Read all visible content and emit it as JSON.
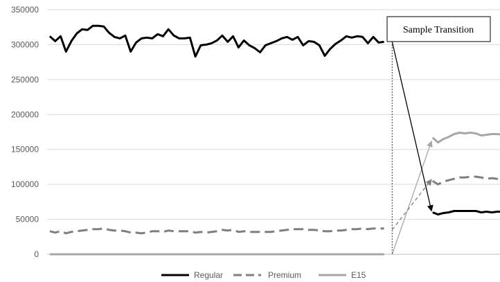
{
  "chart_data": {
    "type": "line",
    "title": "",
    "xlabel": "",
    "ylabel": "",
    "ylim": [
      0,
      350000
    ],
    "yticks": [
      0,
      50000,
      100000,
      150000,
      200000,
      250000,
      300000,
      350000
    ],
    "ytick_labels": [
      "0",
      "50000",
      "100000",
      "150000",
      "200000",
      "250000",
      "300000",
      "350000"
    ],
    "grid": "horizontal",
    "legend": "bottom",
    "n_points": 84,
    "series": [
      {
        "name": "Regular",
        "color": "#000000",
        "dash": "solid",
        "start": 1,
        "values": [
          312000,
          305000,
          312000,
          290000,
          305000,
          316000,
          322000,
          321000,
          327000,
          327000,
          326000,
          317000,
          311000,
          309000,
          313000,
          290000,
          303000,
          309000,
          310000,
          309000,
          315000,
          312000,
          322000,
          313000,
          309000,
          309000,
          310000,
          283000,
          299000,
          300000,
          302000,
          306000,
          313000,
          304000,
          312000,
          296000,
          306000,
          299000,
          295000,
          289000,
          299000,
          302000,
          305000,
          309000,
          311000,
          307000,
          311000,
          299000,
          305000,
          304000,
          299000,
          284000,
          294000,
          301000,
          306000,
          312000,
          310000,
          312000,
          311000,
          302000,
          311000,
          303000,
          304000
        ]
      },
      {
        "name": "Premium",
        "color": "#7f7f7f",
        "dash": "long-dash",
        "start": 1,
        "values": [
          33000,
          31000,
          33000,
          30000,
          32000,
          33000,
          34000,
          35000,
          36000,
          36000,
          37000,
          35000,
          34000,
          34000,
          33000,
          31000,
          31000,
          30000,
          31000,
          33000,
          33000,
          32000,
          34000,
          33000,
          33000,
          33000,
          33000,
          31000,
          32000,
          31000,
          32000,
          33000,
          35000,
          34000,
          35000,
          32000,
          33000,
          32000,
          32000,
          32000,
          32000,
          32000,
          33000,
          34000,
          35000,
          36000,
          36000,
          36000,
          35000,
          35000,
          34000,
          33000,
          33000,
          34000,
          34000,
          35000,
          36000,
          36000,
          37000,
          36000,
          37000,
          37000,
          37000
        ]
      },
      {
        "name": "E15",
        "color": "#a6a6a6",
        "dash": "solid",
        "start": 1,
        "values": [
          0,
          0,
          0,
          0,
          0,
          0,
          0,
          0,
          0,
          0,
          0,
          0,
          0,
          0,
          0,
          0,
          0,
          0,
          0,
          0,
          0,
          0,
          0,
          0,
          0,
          0,
          0,
          0,
          0,
          0,
          0,
          0,
          0,
          0,
          0,
          0,
          0,
          0,
          0,
          0,
          0,
          0,
          0,
          0,
          0,
          0,
          0,
          0,
          0,
          0,
          0,
          0,
          0,
          0,
          0,
          0,
          0,
          0,
          0,
          0,
          0,
          0,
          0
        ]
      }
    ],
    "after_transition": {
      "start": 72,
      "series": [
        {
          "name": "Regular",
          "values": [
            60000,
            57000,
            59000,
            60000,
            62000,
            62000,
            62000,
            62000,
            62000,
            60000,
            61000,
            60000,
            61000,
            61000
          ]
        },
        {
          "name": "Premium",
          "values": [
            105000,
            100000,
            104000,
            106000,
            108000,
            110000,
            110000,
            111000,
            111000,
            110000,
            108000,
            109000,
            108000,
            110000
          ]
        },
        {
          "name": "E15",
          "values": [
            167000,
            160000,
            165000,
            168000,
            172000,
            174000,
            173000,
            174000,
            173000,
            170000,
            171000,
            172000,
            172000,
            171000
          ]
        }
      ]
    },
    "annotation": {
      "text": "Sample Transition",
      "divider_x": 64,
      "arrows": [
        {
          "series": "Regular",
          "from_x": 64,
          "from_y": 304000,
          "to_x": 72,
          "to_y": 62000,
          "color": "#000000",
          "dashed": false
        },
        {
          "series": "Premium",
          "from_x": 64,
          "from_y": 35000,
          "to_x": 72,
          "to_y": 107000,
          "color": "#7f7f7f",
          "dashed": true
        },
        {
          "series": "E15",
          "from_x": 64,
          "from_y": 0,
          "to_x": 72,
          "to_y": 162000,
          "color": "#a6a6a6",
          "dashed": false
        }
      ]
    }
  }
}
